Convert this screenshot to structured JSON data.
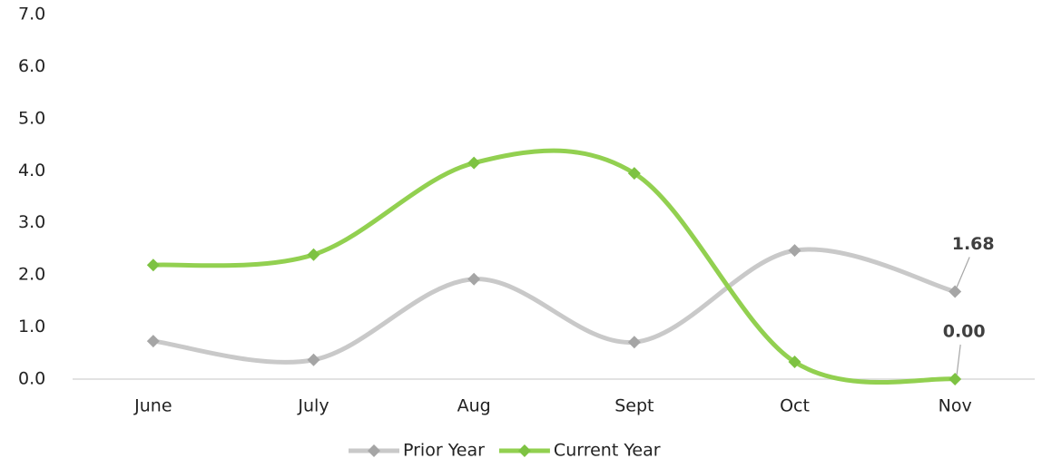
{
  "chart_data": {
    "type": "line",
    "categories": [
      "June",
      "July",
      "Aug",
      "Sept",
      "Oct",
      "Nov"
    ],
    "series": [
      {
        "name": "Prior Year",
        "color": "#c9c9c9",
        "marker_color": "#a5a5a5",
        "values": [
          0.73,
          0.37,
          1.92,
          0.71,
          2.47,
          1.68
        ],
        "value_labels": [
          null,
          null,
          null,
          null,
          null,
          "1.68"
        ]
      },
      {
        "name": "Current Year",
        "color": "#92d050",
        "marker_color": "#7dc242",
        "values": [
          2.19,
          2.39,
          4.15,
          3.95,
          0.33,
          0
        ],
        "value_labels": [
          null,
          null,
          null,
          null,
          null,
          "0.00"
        ]
      }
    ],
    "ylim": [
      0,
      7
    ],
    "yticks": [
      {
        "value": 0,
        "label": "0.0"
      },
      {
        "value": 1,
        "label": "1.0"
      },
      {
        "value": 2,
        "label": "2.0"
      },
      {
        "value": 3,
        "label": "3.0"
      },
      {
        "value": 4,
        "label": "4.0"
      },
      {
        "value": 5,
        "label": "5.0"
      },
      {
        "value": 6,
        "label": "6.0"
      },
      {
        "value": 7,
        "label": "7.0"
      }
    ],
    "grid": false,
    "smooth": true,
    "legend": "bottom"
  }
}
